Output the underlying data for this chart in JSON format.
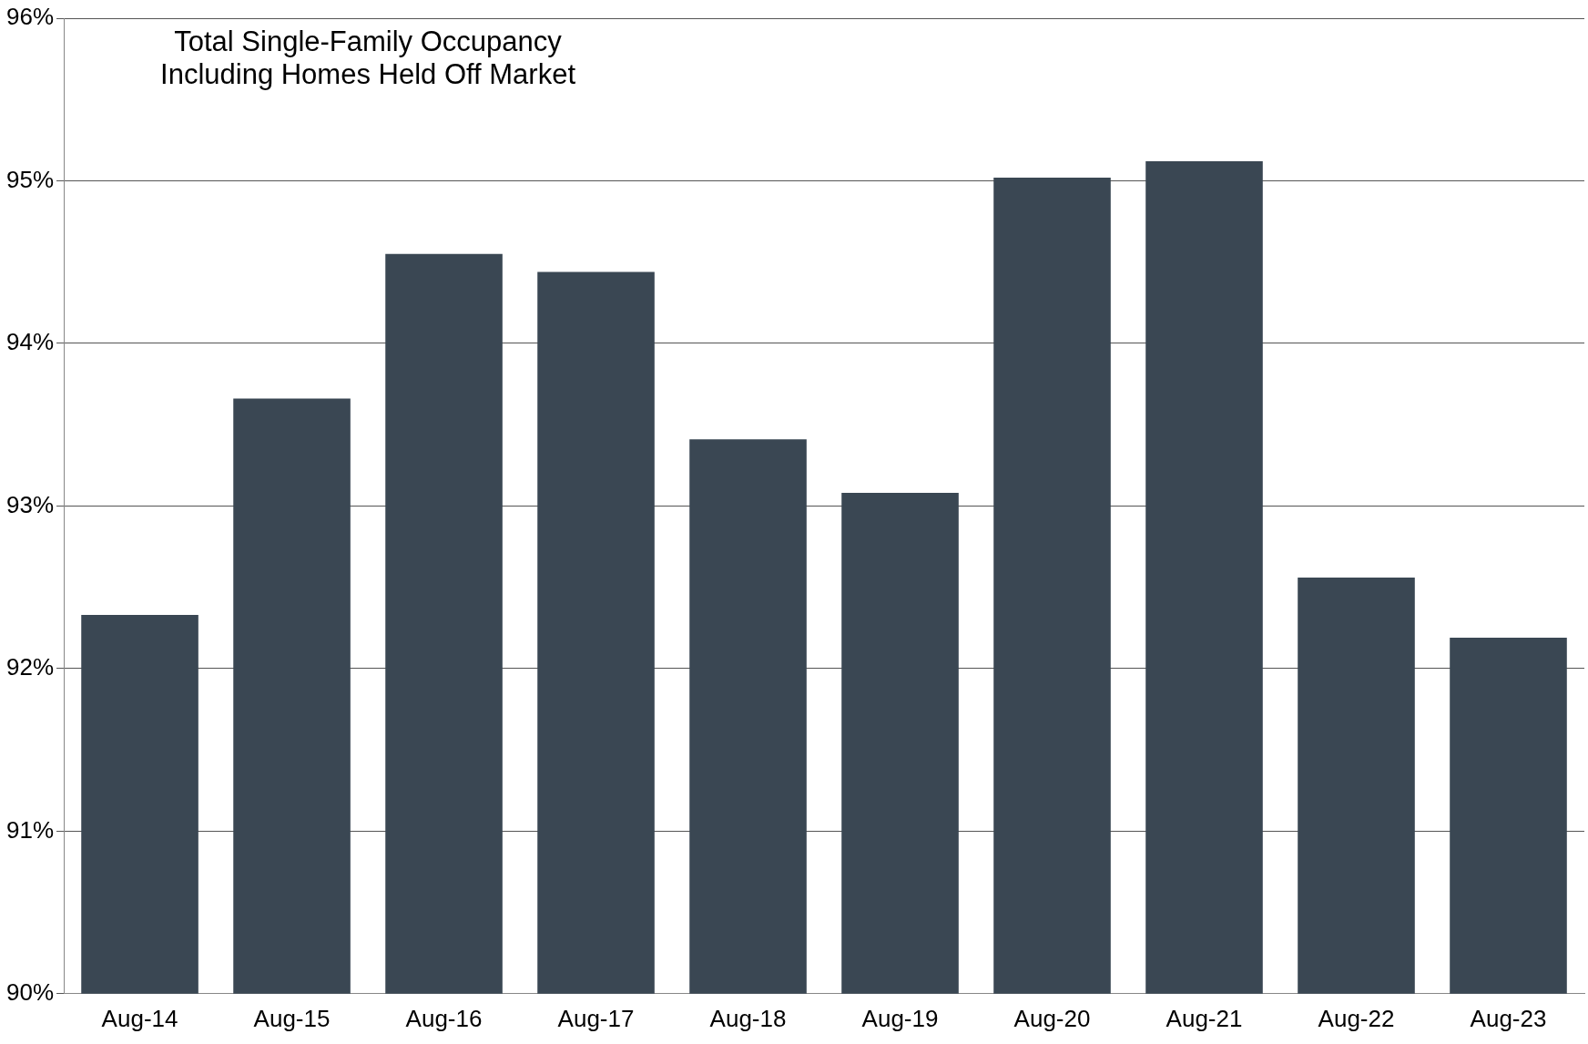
{
  "chart_data": {
    "type": "bar",
    "title": "Total Single-Family Occupancy\nIncluding Homes Held Off Market",
    "categories": [
      "Aug-14",
      "Aug-15",
      "Aug-16",
      "Aug-17",
      "Aug-18",
      "Aug-19",
      "Aug-20",
      "Aug-21",
      "Aug-22",
      "Aug-23"
    ],
    "values": [
      92.33,
      93.66,
      94.55,
      94.44,
      93.41,
      93.08,
      95.02,
      95.12,
      92.56,
      92.19
    ],
    "color": "#3a4753",
    "ylim": [
      90,
      96
    ],
    "yticks": [
      {
        "value": 90,
        "label": "90%"
      },
      {
        "value": 91,
        "label": "91%"
      },
      {
        "value": 92,
        "label": "92%"
      },
      {
        "value": 93,
        "label": "93%"
      },
      {
        "value": 94,
        "label": "94%"
      },
      {
        "value": 95,
        "label": "95%"
      },
      {
        "value": 96,
        "label": "96%"
      }
    ],
    "grid": "y",
    "legend": false
  }
}
